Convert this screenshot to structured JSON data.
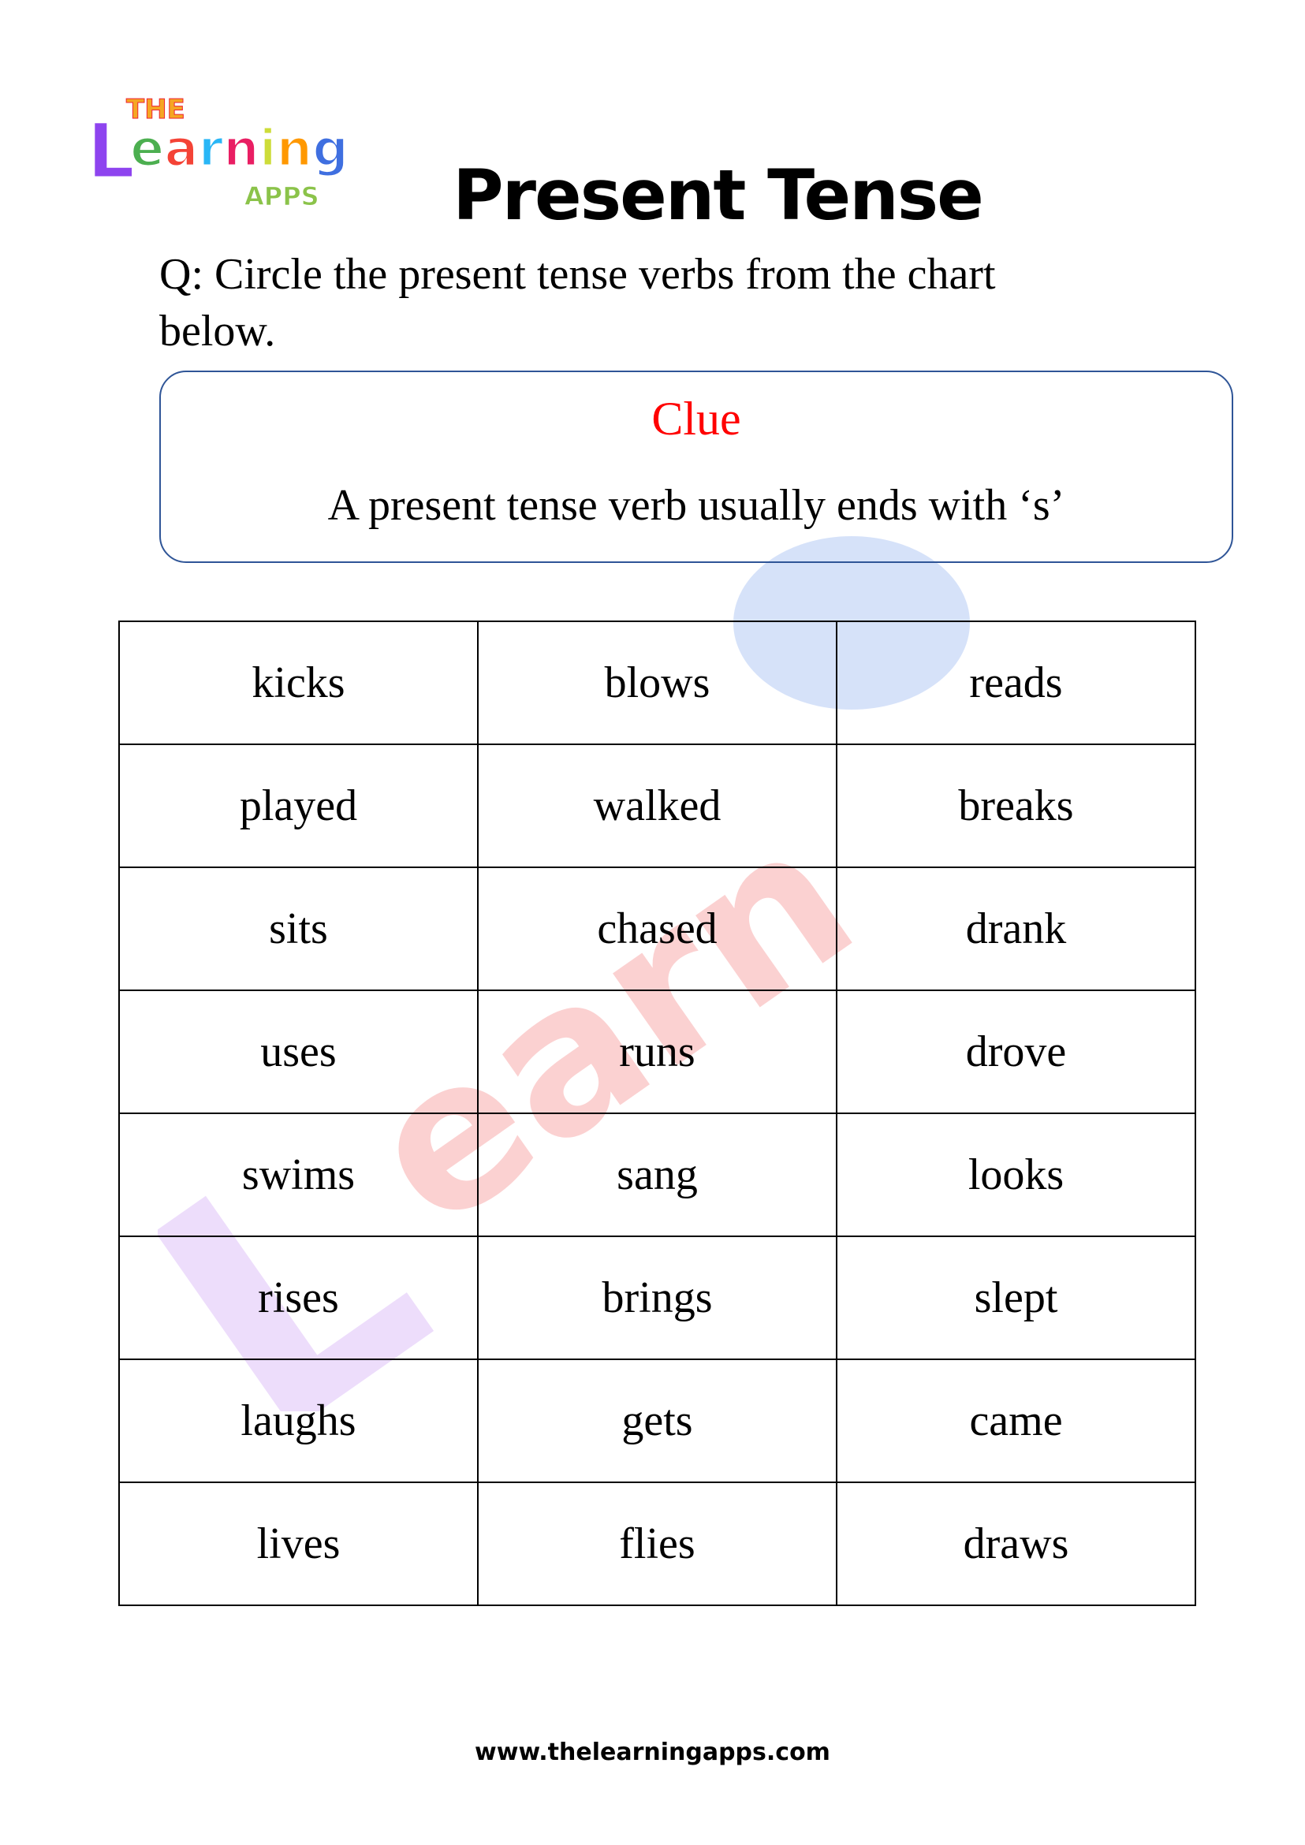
{
  "logo": {
    "text": "THE Learning APPS"
  },
  "title": "Present Tense",
  "question": "Q: Circle the present tense verbs from the chart below.",
  "clue": {
    "title": "Clue",
    "text": "A present tense verb usually ends with ‘s’",
    "title_color": "#ff0000",
    "border_color": "#2f5597"
  },
  "table": {
    "rows": [
      [
        "kicks",
        "blows",
        "reads"
      ],
      [
        "played",
        "walked",
        "breaks"
      ],
      [
        "sits",
        "chased",
        "drank"
      ],
      [
        "uses",
        "runs",
        "drove"
      ],
      [
        "swims",
        "sang",
        "looks"
      ],
      [
        "rises",
        "brings",
        "slept"
      ],
      [
        "laughs",
        "gets",
        "came"
      ],
      [
        "lives",
        "flies",
        "draws"
      ]
    ]
  },
  "footer": "www.thelearningapps.com"
}
